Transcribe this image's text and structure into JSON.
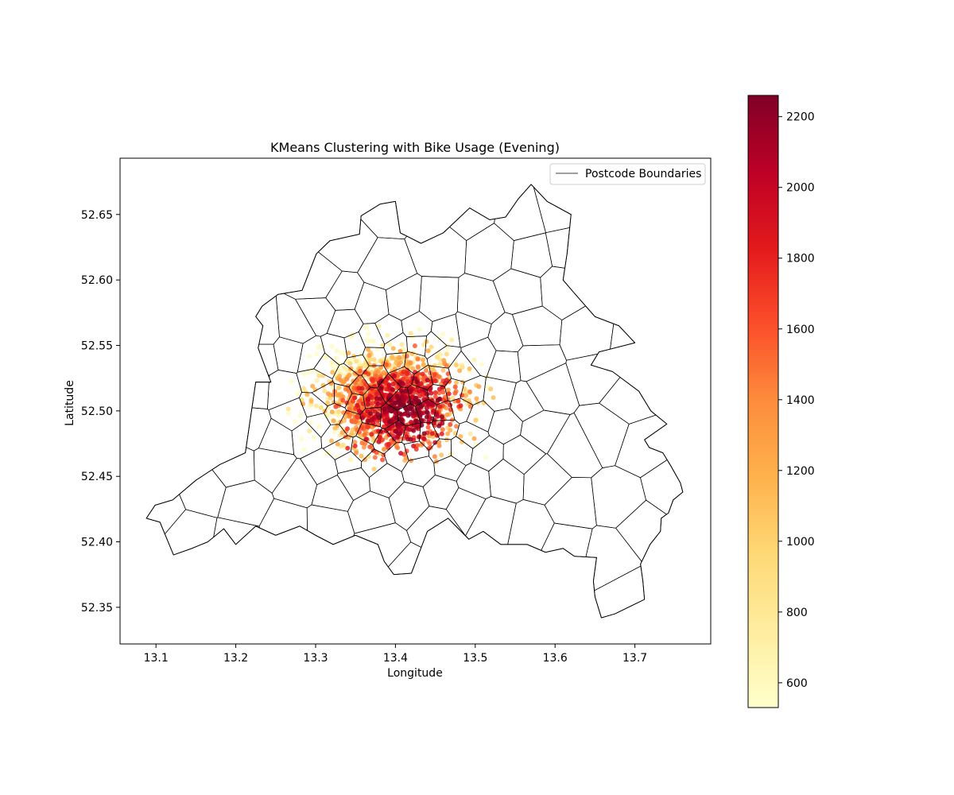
{
  "chart_data": {
    "type": "scatter",
    "title": "KMeans Clustering with Bike Usage (Evening)",
    "xlabel": "Longitude",
    "ylabel": "Latitude",
    "xlim": [
      13.055,
      13.795
    ],
    "ylim": [
      52.322,
      52.693
    ],
    "xticks": [
      13.1,
      13.2,
      13.3,
      13.4,
      13.5,
      13.6,
      13.7
    ],
    "xtick_labels": [
      "13.1",
      "13.2",
      "13.3",
      "13.4",
      "13.5",
      "13.6",
      "13.7"
    ],
    "yticks": [
      52.35,
      52.4,
      52.45,
      52.5,
      52.55,
      52.6,
      52.65
    ],
    "ytick_labels": [
      "52.35",
      "52.40",
      "52.45",
      "52.50",
      "52.55",
      "52.60",
      "52.65"
    ],
    "grid": false,
    "legend": {
      "placement": "top-right",
      "entries": [
        {
          "label": "Postcode Boundaries",
          "color": "#000000",
          "style": "line"
        }
      ]
    },
    "colorbar": {
      "cmap": "YlOrRd",
      "colors": [
        "#ffffcc",
        "#ffeda0",
        "#fed976",
        "#feb24c",
        "#fd8d3c",
        "#fc4e2a",
        "#e31a1c",
        "#bd0026",
        "#800026"
      ],
      "range": [
        530,
        2260
      ],
      "ticks": [
        600,
        800,
        1000,
        1200,
        1400,
        1600,
        1800,
        2000,
        2200
      ],
      "tick_labels": [
        "600",
        "800",
        "1000",
        "1200",
        "1400",
        "1600",
        "1800",
        "2000",
        "2200"
      ]
    },
    "city_outline": [
      [
        13.088,
        52.418
      ],
      [
        13.099,
        52.428
      ],
      [
        13.121,
        52.432
      ],
      [
        13.15,
        52.447
      ],
      [
        13.18,
        52.459
      ],
      [
        13.212,
        52.468
      ],
      [
        13.218,
        52.493
      ],
      [
        13.225,
        52.522
      ],
      [
        13.244,
        52.522
      ],
      [
        13.228,
        52.548
      ],
      [
        13.234,
        52.565
      ],
      [
        13.225,
        52.572
      ],
      [
        13.233,
        52.58
      ],
      [
        13.253,
        52.589
      ],
      [
        13.283,
        52.592
      ],
      [
        13.301,
        52.62
      ],
      [
        13.318,
        52.63
      ],
      [
        13.355,
        52.635
      ],
      [
        13.357,
        52.649
      ],
      [
        13.381,
        52.658
      ],
      [
        13.4,
        52.66
      ],
      [
        13.406,
        52.636
      ],
      [
        13.432,
        52.628
      ],
      [
        13.46,
        52.636
      ],
      [
        13.493,
        52.655
      ],
      [
        13.518,
        52.646
      ],
      [
        13.538,
        52.648
      ],
      [
        13.554,
        52.662
      ],
      [
        13.57,
        52.673
      ],
      [
        13.59,
        52.66
      ],
      [
        13.62,
        52.65
      ],
      [
        13.615,
        52.62
      ],
      [
        13.61,
        52.6
      ],
      [
        13.624,
        52.59
      ],
      [
        13.65,
        52.572
      ],
      [
        13.68,
        52.565
      ],
      [
        13.7,
        52.552
      ],
      [
        13.655,
        52.545
      ],
      [
        13.645,
        52.535
      ],
      [
        13.672,
        52.53
      ],
      [
        13.705,
        52.515
      ],
      [
        13.72,
        52.5
      ],
      [
        13.74,
        52.49
      ],
      [
        13.712,
        52.478
      ],
      [
        13.718,
        52.472
      ],
      [
        13.735,
        52.468
      ],
      [
        13.745,
        52.458
      ],
      [
        13.757,
        52.445
      ],
      [
        13.76,
        52.438
      ],
      [
        13.748,
        52.432
      ],
      [
        13.742,
        52.422
      ],
      [
        13.733,
        52.418
      ],
      [
        13.732,
        52.408
      ],
      [
        13.719,
        52.398
      ],
      [
        13.707,
        52.383
      ],
      [
        13.71,
        52.37
      ],
      [
        13.712,
        52.356
      ],
      [
        13.675,
        52.345
      ],
      [
        13.658,
        52.342
      ],
      [
        13.65,
        52.358
      ],
      [
        13.648,
        52.37
      ],
      [
        13.652,
        52.388
      ],
      [
        13.624,
        52.389
      ],
      [
        13.61,
        52.395
      ],
      [
        13.588,
        52.392
      ],
      [
        13.565,
        52.398
      ],
      [
        13.532,
        52.398
      ],
      [
        13.51,
        52.408
      ],
      [
        13.492,
        52.402
      ],
      [
        13.466,
        52.418
      ],
      [
        13.44,
        52.408
      ],
      [
        13.425,
        52.384
      ],
      [
        13.42,
        52.376
      ],
      [
        13.398,
        52.375
      ],
      [
        13.386,
        52.385
      ],
      [
        13.378,
        52.398
      ],
      [
        13.35,
        52.405
      ],
      [
        13.322,
        52.398
      ],
      [
        13.3,
        52.405
      ],
      [
        13.28,
        52.412
      ],
      [
        13.25,
        52.405
      ],
      [
        13.225,
        52.412
      ],
      [
        13.2,
        52.398
      ],
      [
        13.185,
        52.41
      ],
      [
        13.165,
        52.4
      ],
      [
        13.145,
        52.395
      ],
      [
        13.122,
        52.39
      ],
      [
        13.105,
        52.415
      ],
      [
        13.088,
        52.418
      ]
    ],
    "series_caption": "Postcode Boundaries"
  }
}
